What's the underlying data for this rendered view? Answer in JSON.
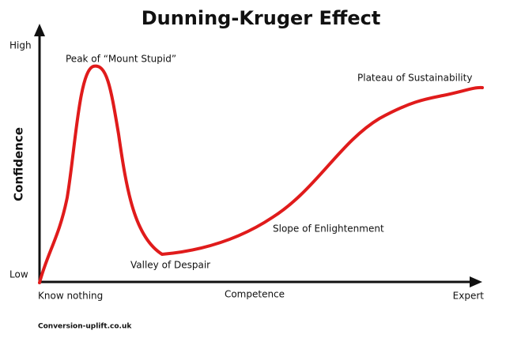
{
  "title": "Dunning-Kruger Effect",
  "y_axis": {
    "label": "Confidence",
    "high": "High",
    "low": "Low"
  },
  "x_axis": {
    "label": "Competence",
    "start": "Know nothing",
    "end": "Expert"
  },
  "annotations": {
    "peak": "Peak of “Mount Stupid”",
    "valley": "Valley of Despair",
    "slope": "Slope of Enlightenment",
    "plateau": "Plateau of Sustainability"
  },
  "footer": "Conversion-uplift.co.uk"
}
